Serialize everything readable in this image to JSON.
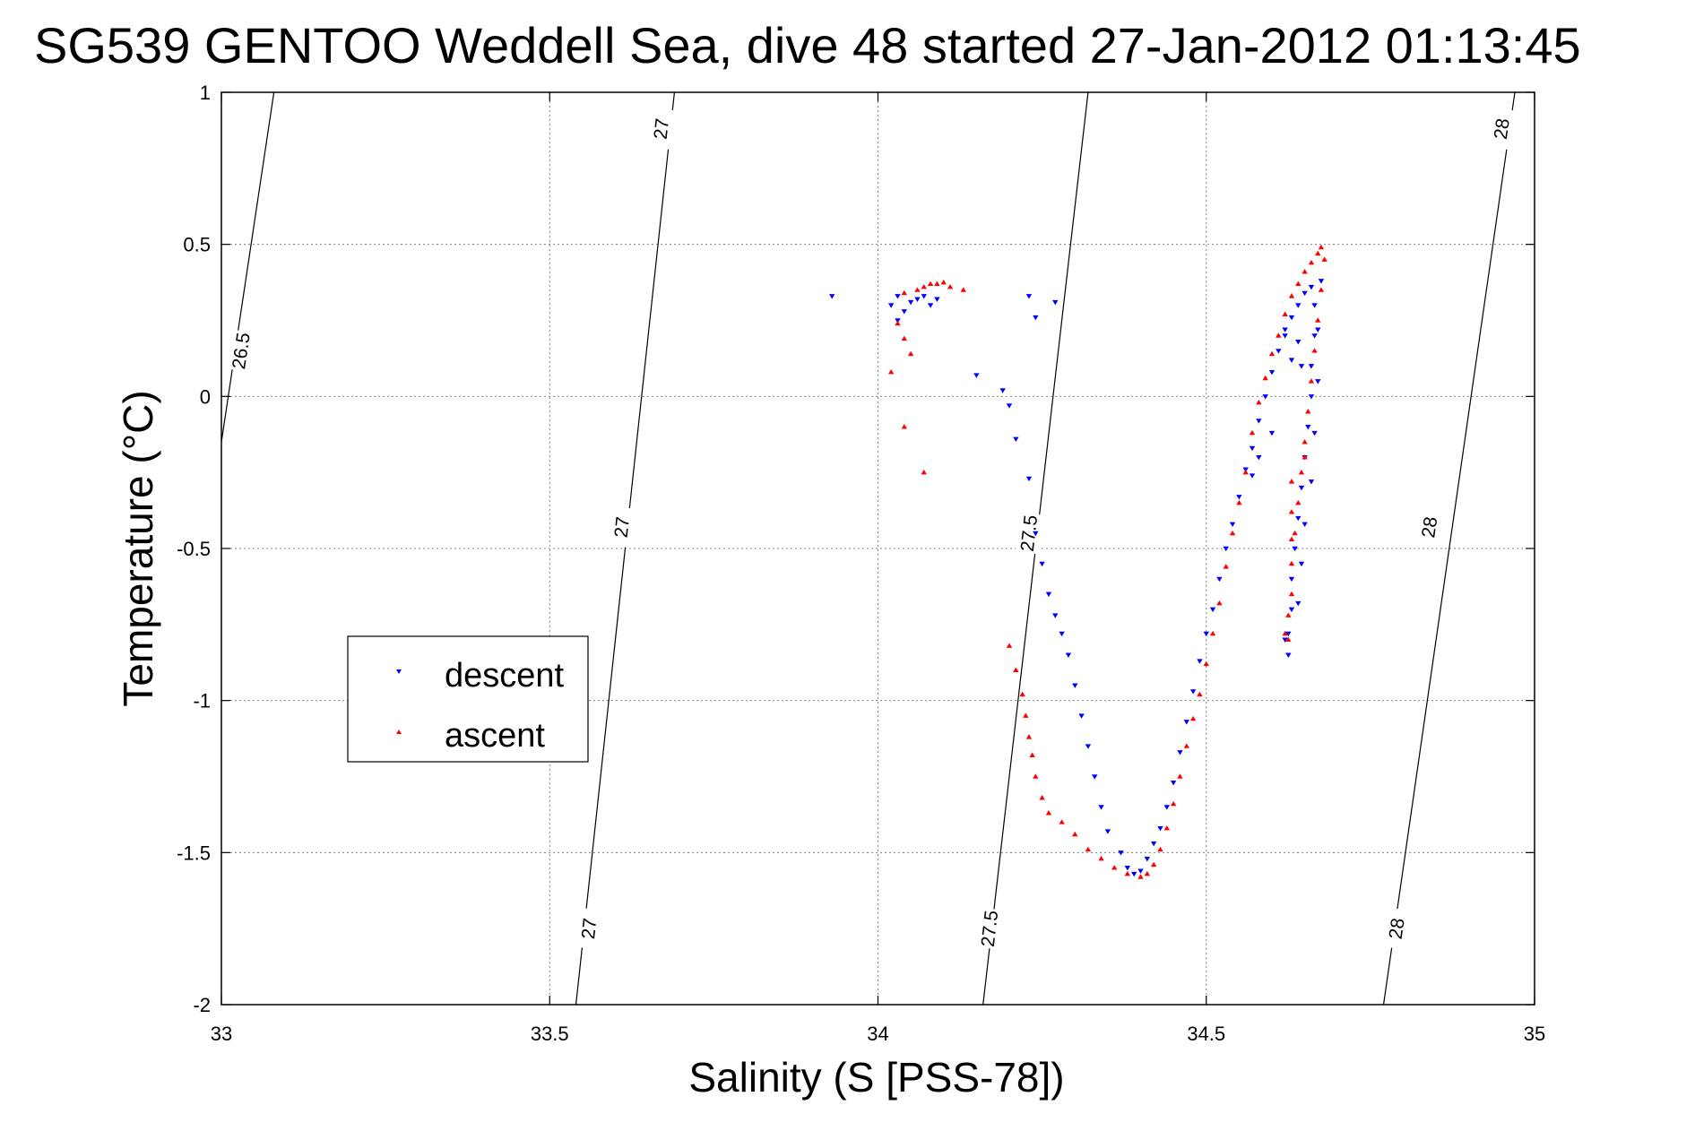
{
  "chart_data": {
    "type": "scatter",
    "title": "SG539 GENTOO Weddell Sea, dive 48 started 27-Jan-2012 01:13:45",
    "xlabel": "Salinity (S [PSS-78])",
    "ylabel": "Temperature (°C)",
    "xlim": [
      33,
      35
    ],
    "ylim": [
      -2,
      1
    ],
    "xticks": [
      33,
      33.5,
      34,
      34.5,
      35
    ],
    "xtick_labels": [
      "33",
      "33.5",
      "34",
      "34.5",
      "35"
    ],
    "yticks": [
      -2,
      -1.5,
      -1,
      -0.5,
      0,
      0.5,
      1
    ],
    "ytick_labels": [
      "-2",
      "-1.5",
      "-1",
      "-0.5",
      "0",
      "0.5",
      "1"
    ],
    "grid": true,
    "legend": {
      "placement": "middle-left"
    },
    "density_contours": [
      {
        "label": "26.5",
        "points": [
          [
            33.08,
            1.0
          ],
          [
            33.0,
            -0.15
          ]
        ],
        "label_positions": [
          [
            33.03,
            0.15
          ]
        ]
      },
      {
        "label": "27",
        "points": [
          [
            33.69,
            1.0
          ],
          [
            33.54,
            -2.0
          ]
        ],
        "label_positions": [
          [
            33.67,
            0.88
          ],
          [
            33.61,
            -0.43
          ],
          [
            33.56,
            -1.75
          ]
        ]
      },
      {
        "label": "27.5",
        "points": [
          [
            34.32,
            1.0
          ],
          [
            34.16,
            -2.0
          ]
        ],
        "label_positions": [
          [
            34.23,
            -0.45
          ],
          [
            34.17,
            -1.75
          ]
        ]
      },
      {
        "label": "28",
        "points": [
          [
            34.97,
            1.0
          ],
          [
            34.77,
            -2.0
          ]
        ],
        "label_positions": [
          [
            34.95,
            0.88
          ],
          [
            34.84,
            -0.43
          ],
          [
            34.79,
            -1.75
          ]
        ]
      }
    ],
    "series": [
      {
        "name": "descent",
        "color": "#0000ff",
        "marker": "triangle-down",
        "points": [
          [
            33.93,
            0.33
          ],
          [
            34.03,
            0.33
          ],
          [
            34.05,
            0.31
          ],
          [
            34.08,
            0.3
          ],
          [
            34.02,
            0.3
          ],
          [
            34.06,
            0.32
          ],
          [
            34.04,
            0.28
          ],
          [
            34.07,
            0.33
          ],
          [
            34.03,
            0.25
          ],
          [
            34.09,
            0.32
          ],
          [
            34.15,
            0.07
          ],
          [
            34.19,
            0.02
          ],
          [
            34.2,
            -0.03
          ],
          [
            34.21,
            -0.14
          ],
          [
            34.23,
            0.33
          ],
          [
            34.27,
            0.31
          ],
          [
            34.24,
            0.26
          ],
          [
            34.23,
            -0.27
          ],
          [
            34.24,
            -0.45
          ],
          [
            34.25,
            -0.55
          ],
          [
            34.26,
            -0.65
          ],
          [
            34.27,
            -0.72
          ],
          [
            34.28,
            -0.78
          ],
          [
            34.29,
            -0.85
          ],
          [
            34.3,
            -0.95
          ],
          [
            34.31,
            -1.05
          ],
          [
            34.32,
            -1.15
          ],
          [
            34.33,
            -1.25
          ],
          [
            34.34,
            -1.35
          ],
          [
            34.35,
            -1.43
          ],
          [
            34.37,
            -1.5
          ],
          [
            34.38,
            -1.55
          ],
          [
            34.39,
            -1.57
          ],
          [
            34.4,
            -1.56
          ],
          [
            34.41,
            -1.52
          ],
          [
            34.42,
            -1.47
          ],
          [
            34.43,
            -1.42
          ],
          [
            34.44,
            -1.35
          ],
          [
            34.45,
            -1.27
          ],
          [
            34.46,
            -1.17
          ],
          [
            34.47,
            -1.07
          ],
          [
            34.48,
            -0.97
          ],
          [
            34.49,
            -0.87
          ],
          [
            34.5,
            -0.78
          ],
          [
            34.51,
            -0.7
          ],
          [
            34.52,
            -0.6
          ],
          [
            34.53,
            -0.5
          ],
          [
            34.54,
            -0.42
          ],
          [
            34.55,
            -0.33
          ],
          [
            34.56,
            -0.24
          ],
          [
            34.57,
            -0.17
          ],
          [
            34.58,
            -0.08
          ],
          [
            34.59,
            0.0
          ],
          [
            34.6,
            0.08
          ],
          [
            34.61,
            0.15
          ],
          [
            34.62,
            0.2
          ],
          [
            34.63,
            0.26
          ],
          [
            34.64,
            0.3
          ],
          [
            34.65,
            0.34
          ],
          [
            34.66,
            0.36
          ],
          [
            34.665,
            0.3
          ],
          [
            34.665,
            0.2
          ],
          [
            34.66,
            0.1
          ],
          [
            34.66,
            0.0
          ],
          [
            34.655,
            -0.1
          ],
          [
            34.65,
            -0.2
          ],
          [
            34.645,
            -0.3
          ],
          [
            34.64,
            -0.4
          ],
          [
            34.635,
            -0.5
          ],
          [
            34.63,
            -0.6
          ],
          [
            34.63,
            -0.7
          ],
          [
            34.625,
            -0.78
          ],
          [
            34.625,
            -0.85
          ],
          [
            34.62,
            -0.8
          ],
          [
            34.64,
            -0.68
          ],
          [
            34.645,
            -0.55
          ],
          [
            34.65,
            -0.42
          ],
          [
            34.66,
            -0.28
          ],
          [
            34.665,
            -0.12
          ],
          [
            34.67,
            0.05
          ],
          [
            34.67,
            0.22
          ],
          [
            34.675,
            0.38
          ],
          [
            34.64,
            0.18
          ],
          [
            34.645,
            0.1
          ],
          [
            34.6,
            -0.12
          ],
          [
            34.58,
            -0.2
          ],
          [
            34.57,
            -0.26
          ],
          [
            34.63,
            0.12
          ],
          [
            34.62,
            0.22
          ]
        ]
      },
      {
        "name": "ascent",
        "color": "#ff0000",
        "marker": "triangle-up",
        "points": [
          [
            34.04,
            0.34
          ],
          [
            34.07,
            0.36
          ],
          [
            34.09,
            0.37
          ],
          [
            34.11,
            0.36
          ],
          [
            34.13,
            0.35
          ],
          [
            34.06,
            0.35
          ],
          [
            34.08,
            0.37
          ],
          [
            34.1,
            0.375
          ],
          [
            34.03,
            0.24
          ],
          [
            34.04,
            0.19
          ],
          [
            34.05,
            0.14
          ],
          [
            34.02,
            0.08
          ],
          [
            34.04,
            -0.1
          ],
          [
            34.07,
            -0.25
          ],
          [
            34.2,
            -0.82
          ],
          [
            34.21,
            -0.9
          ],
          [
            34.22,
            -0.98
          ],
          [
            34.225,
            -1.05
          ],
          [
            34.23,
            -1.12
          ],
          [
            34.235,
            -1.18
          ],
          [
            34.24,
            -1.25
          ],
          [
            34.25,
            -1.32
          ],
          [
            34.26,
            -1.37
          ],
          [
            34.28,
            -1.4
          ],
          [
            34.3,
            -1.44
          ],
          [
            34.32,
            -1.49
          ],
          [
            34.34,
            -1.52
          ],
          [
            34.36,
            -1.55
          ],
          [
            34.38,
            -1.57
          ],
          [
            34.4,
            -1.58
          ],
          [
            34.41,
            -1.57
          ],
          [
            34.42,
            -1.54
          ],
          [
            34.43,
            -1.49
          ],
          [
            34.44,
            -1.42
          ],
          [
            34.45,
            -1.34
          ],
          [
            34.46,
            -1.25
          ],
          [
            34.47,
            -1.15
          ],
          [
            34.48,
            -1.06
          ],
          [
            34.49,
            -0.98
          ],
          [
            34.5,
            -0.88
          ],
          [
            34.51,
            -0.78
          ],
          [
            34.52,
            -0.68
          ],
          [
            34.53,
            -0.56
          ],
          [
            34.54,
            -0.45
          ],
          [
            34.55,
            -0.35
          ],
          [
            34.56,
            -0.25
          ],
          [
            34.57,
            -0.12
          ],
          [
            34.58,
            -0.02
          ],
          [
            34.59,
            0.06
          ],
          [
            34.6,
            0.14
          ],
          [
            34.61,
            0.2
          ],
          [
            34.62,
            0.27
          ],
          [
            34.63,
            0.33
          ],
          [
            34.64,
            0.37
          ],
          [
            34.65,
            0.41
          ],
          [
            34.66,
            0.44
          ],
          [
            34.67,
            0.47
          ],
          [
            34.675,
            0.49
          ],
          [
            34.68,
            0.45
          ],
          [
            34.675,
            0.35
          ],
          [
            34.67,
            0.25
          ],
          [
            34.665,
            0.15
          ],
          [
            34.66,
            0.05
          ],
          [
            34.655,
            -0.05
          ],
          [
            34.65,
            -0.15
          ],
          [
            34.645,
            -0.25
          ],
          [
            34.64,
            -0.35
          ],
          [
            34.635,
            -0.45
          ],
          [
            34.63,
            -0.55
          ],
          [
            34.63,
            -0.65
          ],
          [
            34.625,
            -0.72
          ],
          [
            34.62,
            -0.78
          ],
          [
            34.625,
            -0.8
          ],
          [
            34.63,
            -0.47
          ],
          [
            34.63,
            -0.38
          ],
          [
            34.63,
            -0.28
          ],
          [
            34.65,
            -0.2
          ]
        ]
      }
    ]
  }
}
